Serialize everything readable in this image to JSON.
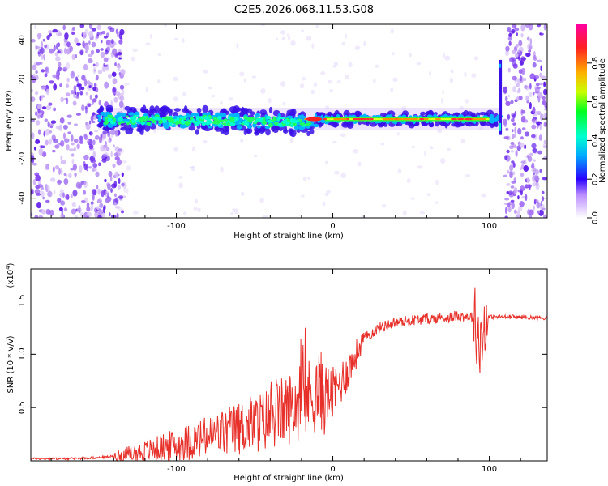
{
  "title": "C2E5.2026.068.11.53.G08",
  "chart_data": [
    {
      "type": "heatmap",
      "name": "spectrogram",
      "xlabel": "Height of straight line (km)",
      "ylabel": "Frequency (Hz)",
      "xlim": [
        -193,
        137
      ],
      "ylim": [
        -50,
        48
      ],
      "xticks": [
        -100,
        0,
        100
      ],
      "yticks": [
        -40,
        -20,
        0,
        20,
        40
      ],
      "signal_band_center_hz": 0,
      "noise_region_left_km": [
        -193,
        -133
      ],
      "noise_region_right_km": [
        110,
        137
      ],
      "signal_start_km": -150,
      "signal_end_km": 107,
      "colorbar": {
        "label": "Normalized spectral amplitude",
        "range": [
          0.0,
          1.0
        ],
        "ticks": [
          0.0,
          0.2,
          0.4,
          0.6,
          0.8
        ]
      }
    },
    {
      "type": "line",
      "name": "snr",
      "xlabel": "Height of straight line (km)",
      "ylabel": "SNR (10 * v/v)",
      "y_scale_label": "(x10",
      "y_scale_exp": "4",
      "y_scale_close": ")",
      "xlim": [
        -193,
        137
      ],
      "ylim": [
        0,
        1.8
      ],
      "xticks": [
        -100,
        0,
        100
      ],
      "yticks": [
        0.5,
        1.0,
        1.5
      ],
      "ytick_labels": [
        "0.5",
        "1.0",
        "1.5"
      ],
      "series": [
        {
          "name": "SNR",
          "color": "#e8302a",
          "x": [
            -193,
            -170,
            -150,
            -135,
            -120,
            -100,
            -80,
            -60,
            -40,
            -30,
            -20,
            -10,
            0,
            10,
            15,
            20,
            30,
            40,
            50,
            60,
            70,
            80,
            90,
            95,
            98,
            100,
            110,
            120,
            137
          ],
          "y": [
            0.02,
            0.02,
            0.03,
            0.05,
            0.09,
            0.15,
            0.22,
            0.3,
            0.4,
            0.48,
            0.55,
            0.65,
            0.62,
            0.85,
            1.0,
            1.15,
            1.25,
            1.3,
            1.32,
            1.33,
            1.34,
            1.36,
            1.35,
            1.1,
            1.35,
            1.35,
            1.35,
            1.35,
            1.34
          ]
        }
      ]
    }
  ]
}
